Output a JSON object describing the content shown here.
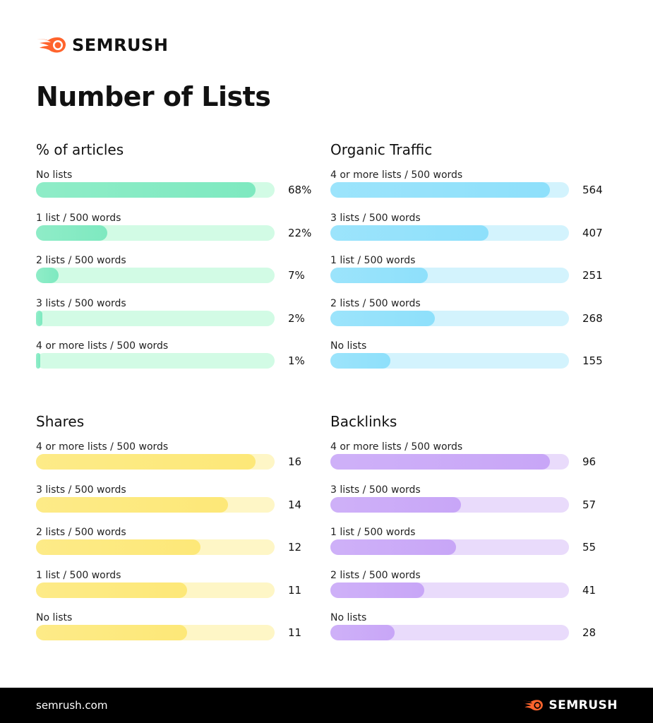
{
  "brand": {
    "name": "SEMRUSH",
    "accent": "#ff642d"
  },
  "title": "Number of Lists",
  "footer": {
    "site": "semrush.com"
  },
  "chart_data": [
    {
      "type": "bar",
      "title": "% of articles",
      "unit": "%",
      "fill": "#7ee9c0",
      "track": "#d2fbe5",
      "categories": [
        "No lists",
        "1 list / 500 words",
        "2 lists / 500 words",
        "3 lists / 500 words",
        "4 or more lists / 500 words"
      ],
      "values": [
        68,
        22,
        7,
        2,
        1
      ],
      "labels": [
        "68%",
        "22%",
        "7%",
        "2%",
        "1%"
      ]
    },
    {
      "type": "bar",
      "title": "Organic Traffic",
      "fill": "#8ee0fb",
      "track": "#d3f3fd",
      "categories": [
        "4 or more lists / 500 words",
        "3 lists / 500 words",
        "1 list / 500 words",
        "2 lists / 500 words",
        "No lists"
      ],
      "values": [
        564,
        407,
        251,
        268,
        155
      ],
      "labels": [
        "564",
        "407",
        "251",
        "268",
        "155"
      ]
    },
    {
      "type": "bar",
      "title": "Shares",
      "fill": "#fde878",
      "track": "#fef6c6",
      "categories": [
        "4 or more lists / 500 words",
        "3 lists / 500 words",
        "2 lists / 500 words",
        "1 list / 500 words",
        "No lists"
      ],
      "values": [
        16,
        14,
        12,
        11,
        11
      ],
      "labels": [
        "16",
        "14",
        "12",
        "11",
        "11"
      ]
    },
    {
      "type": "bar",
      "title": "Backlinks",
      "fill": "#c8a6f7",
      "track": "#e9dbfb",
      "categories": [
        "4 or more lists / 500 words",
        "3 lists / 500 words",
        "1 list / 500 words",
        "2 lists / 500 words",
        "No lists"
      ],
      "values": [
        96,
        57,
        55,
        41,
        28
      ],
      "labels": [
        "96",
        "57",
        "55",
        "41",
        "28"
      ]
    }
  ]
}
